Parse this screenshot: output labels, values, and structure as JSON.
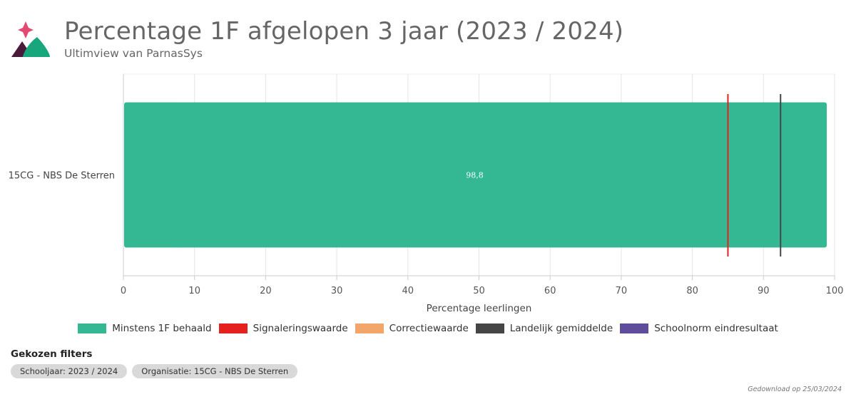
{
  "header": {
    "title": "Percentage 1F afgelopen 3 jaar (2023 / 2024)",
    "subtitle": "Ultimview van ParnasSys"
  },
  "colors": {
    "logo_star": "#e24a74",
    "logo_dark": "#4a1a3a",
    "logo_green": "#18a77d"
  },
  "chart_data": {
    "type": "bar",
    "orientation": "horizontal",
    "categories": [
      "15CG - NBS De Sterren"
    ],
    "series": [
      {
        "name": "Minstens 1F behaald",
        "values": [
          98.8
        ],
        "color": "#34b893",
        "data_labels": [
          "98,8"
        ]
      }
    ],
    "reference_lines": [
      {
        "name": "Signaleringswaarde",
        "value": 85,
        "color": "#e5211f"
      },
      {
        "name": "Landelijk gemiddelde",
        "value": 92.4,
        "color": "#454545"
      }
    ],
    "xlabel": "Percentage leerlingen",
    "ylabel": "",
    "xlim": [
      0,
      100
    ],
    "x_ticks": [
      0,
      10,
      20,
      30,
      40,
      50,
      60,
      70,
      80,
      90,
      100
    ],
    "grid": true,
    "legend_position": "bottom",
    "legend": [
      {
        "label": "Minstens 1F behaald",
        "color": "#34b893"
      },
      {
        "label": "Signaleringswaarde",
        "color": "#e5211f"
      },
      {
        "label": "Correctiewaarde",
        "color": "#f2a66a"
      },
      {
        "label": "Landelijk gemiddelde",
        "color": "#454545"
      },
      {
        "label": "Schoolnorm eindresultaat",
        "color": "#5f4d9b"
      }
    ]
  },
  "filters": {
    "title": "Gekozen filters",
    "chips": [
      "Schooljaar: 2023 / 2024",
      "Organisatie: 15CG - NBS De Sterren"
    ]
  },
  "footer": {
    "download_note": "Gedownload op 25/03/2024"
  }
}
